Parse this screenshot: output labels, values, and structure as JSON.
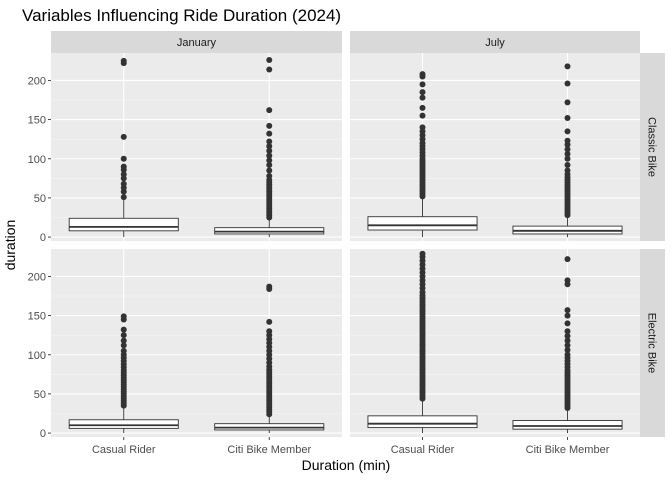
{
  "chart_data": {
    "type": "boxplot",
    "title": "Variables Influencing Ride Duration (2024)",
    "xlabel": "Duration (min)",
    "ylabel": "duration",
    "categories": [
      "Casual Rider",
      "Citi Bike Member"
    ],
    "yticks": [
      0,
      50,
      100,
      150,
      200
    ],
    "ylim": [
      -5,
      235
    ],
    "grid": true,
    "columns": [
      "January",
      "July"
    ],
    "rows": [
      "Classic Bike",
      "Electric Bike"
    ],
    "panels": [
      {
        "col": "January",
        "row": "Classic Bike",
        "boxes": [
          {
            "category": "Casual Rider",
            "q1": 8,
            "median": 13,
            "q3": 24,
            "whisker_low": 0,
            "whisker_high": 48,
            "outliers": [
              51,
              58,
              63,
              68,
              75,
              80,
              86,
              90,
              100,
              128,
              222,
              225
            ]
          },
          {
            "category": "Citi Bike Member",
            "q1": 4,
            "median": 7,
            "q3": 12,
            "whisker_low": 0,
            "whisker_high": 24,
            "outliers": [
              25,
              28,
              31,
              34,
              37,
              40,
              43,
              46,
              49,
              52,
              55,
              58,
              61,
              64,
              67,
              70,
              73,
              78,
              85,
              92,
              98,
              104,
              110,
              116,
              122,
              132,
              142,
              162,
              214,
              226
            ]
          }
        ]
      },
      {
        "col": "July",
        "row": "Classic Bike",
        "boxes": [
          {
            "category": "Casual Rider",
            "q1": 9,
            "median": 15,
            "q3": 26,
            "whisker_low": 0,
            "whisker_high": 50,
            "outliers": [
              52,
              55,
              58,
              61,
              64,
              67,
              70,
              73,
              76,
              79,
              82,
              85,
              88,
              91,
              94,
              97,
              100,
              104,
              108,
              112,
              116,
              120,
              125,
              130,
              135,
              140,
              155,
              165,
              178,
              185,
              195,
              205,
              208
            ]
          },
          {
            "category": "Citi Bike Member",
            "q1": 4,
            "median": 8,
            "q3": 14,
            "whisker_low": 0,
            "whisker_high": 26,
            "outliers": [
              28,
              31,
              34,
              37,
              40,
              43,
              46,
              49,
              52,
              55,
              58,
              61,
              64,
              67,
              70,
              73,
              76,
              80,
              85,
              92,
              100,
              106,
              112,
              118,
              123,
              135,
              152,
              172,
              196,
              218
            ]
          }
        ]
      },
      {
        "col": "January",
        "row": "Electric Bike",
        "boxes": [
          {
            "category": "Casual Rider",
            "q1": 6,
            "median": 10,
            "q3": 17,
            "whisker_low": 0,
            "whisker_high": 33,
            "outliers": [
              35,
              38,
              41,
              44,
              47,
              50,
              53,
              56,
              59,
              62,
              65,
              68,
              71,
              74,
              77,
              80,
              84,
              88,
              92,
              96,
              100,
              105,
              112,
              118,
              125,
              132,
              145,
              149
            ]
          },
          {
            "category": "Citi Bike Member",
            "q1": 4,
            "median": 7,
            "q3": 12,
            "whisker_low": 0,
            "whisker_high": 22,
            "outliers": [
              24,
              27,
              30,
              33,
              36,
              39,
              42,
              45,
              48,
              51,
              54,
              57,
              60,
              63,
              66,
              69,
              72,
              75,
              78,
              81,
              85,
              90,
              95,
              100,
              105,
              110,
              115,
              120,
              125,
              130,
              142,
              184,
              187
            ]
          }
        ]
      },
      {
        "col": "July",
        "row": "Electric Bike",
        "boxes": [
          {
            "category": "Casual Rider",
            "q1": 7,
            "median": 12,
            "q3": 22,
            "whisker_low": 0,
            "whisker_high": 42,
            "outliers": [
              44,
              47,
              50,
              53,
              56,
              59,
              62,
              65,
              68,
              71,
              74,
              77,
              80,
              83,
              86,
              89,
              92,
              95,
              98,
              101,
              104,
              107,
              110,
              113,
              116,
              119,
              122,
              125,
              128,
              131,
              134,
              137,
              140,
              143,
              146,
              149,
              152,
              155,
              158,
              161,
              164,
              167,
              170,
              173,
              176,
              180,
              185,
              190,
              195,
              200,
              205,
              210,
              215,
              220,
              225,
              229
            ]
          },
          {
            "category": "Citi Bike Member",
            "q1": 5,
            "median": 9,
            "q3": 16,
            "whisker_low": 0,
            "whisker_high": 30,
            "outliers": [
              32,
              35,
              38,
              41,
              44,
              47,
              50,
              53,
              56,
              59,
              62,
              65,
              68,
              71,
              74,
              77,
              80,
              84,
              88,
              92,
              96,
              100,
              106,
              112,
              118,
              124,
              130,
              140,
              150,
              157,
              190,
              195,
              222
            ]
          }
        ]
      }
    ]
  }
}
